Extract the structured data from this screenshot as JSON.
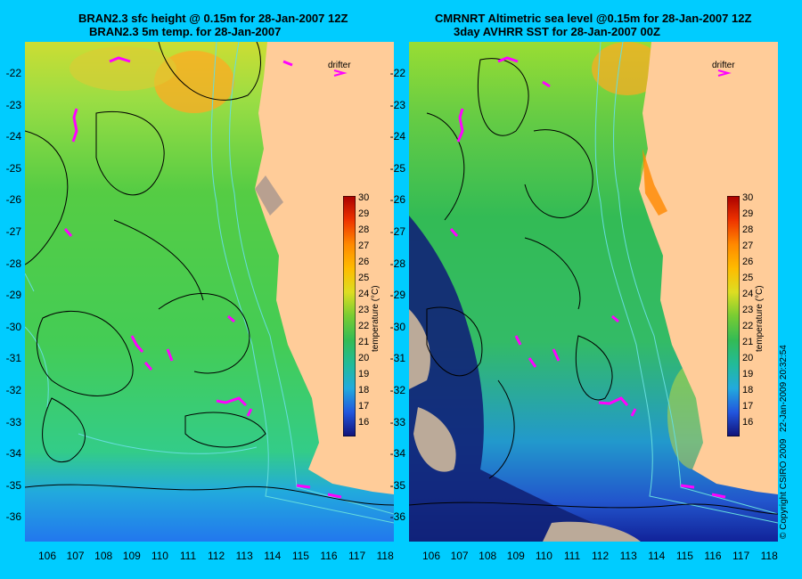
{
  "left_map": {
    "title_line1": "BRAN2.3 sfc height @ 0.15m for 28-Jan-2007 12Z",
    "title_line2": "BRAN2.3 5m temp. for 28-Jan-2007",
    "legend_label": "drifter",
    "colorbar_label": "temperature (°C)"
  },
  "right_map": {
    "title_line1": "CMRNRT Altimetric sea level  @0.15m  for 28-Jan-2007 12Z",
    "title_line2": "3day AVHRR SST for 28-Jan-2007 00Z",
    "legend_label": "drifter",
    "colorbar_label": "temperature (°C)"
  },
  "latitude_ticks": [
    "-22",
    "-23",
    "-24",
    "-25",
    "-26",
    "-27",
    "-28",
    "-29",
    "-30",
    "-31",
    "-32",
    "-33",
    "-34",
    "-35",
    "-36"
  ],
  "longitude_ticks": [
    "106",
    "107",
    "108",
    "109",
    "110",
    "111",
    "112",
    "113",
    "114",
    "115",
    "116",
    "117",
    "118"
  ],
  "colorbar_ticks": [
    "30",
    "29",
    "28",
    "27",
    "26",
    "25",
    "24",
    "23",
    "22",
    "21",
    "20",
    "19",
    "18",
    "17",
    "16"
  ],
  "copyright": "© Copyright CSIRO 2009",
  "timestamp": "22-Jan-2009 20:32:54",
  "colors": {
    "background": "#00ccff",
    "land": "#ffcc99",
    "drifter": "#ff00ff",
    "contour": "#000000",
    "isobath": "#66dddd"
  }
}
